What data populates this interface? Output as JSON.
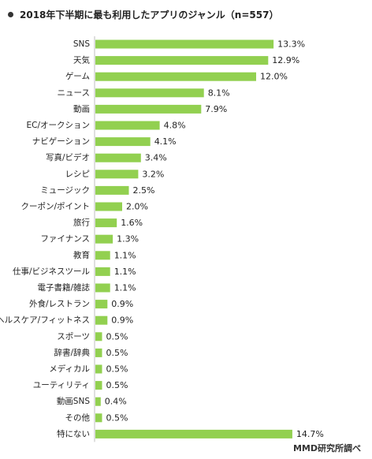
{
  "title": "2018年下半期に最も利用したアプリのジャンル（n=557）",
  "source": "MMD研究所調べ",
  "colors": {
    "bar": "#92d050",
    "axis": "#bfbfbf",
    "text": "#222222"
  },
  "chart_data": {
    "type": "bar",
    "orientation": "horizontal",
    "title": "2018年下半期に最も利用したアプリのジャンル（n=557）",
    "unit": "%",
    "categories": [
      "SNS",
      "天気",
      "ゲーム",
      "ニュース",
      "動画",
      "EC/オークション",
      "ナビゲーション",
      "写真/ビデオ",
      "レシピ",
      "ミュージック",
      "クーポン/ポイント",
      "旅行",
      "ファイナンス",
      "教育",
      "仕事/ビジネスツール",
      "電子書籍/雑誌",
      "外食/レストラン",
      "ヘルスケア/フィットネス",
      "スポーツ",
      "辞書/辞典",
      "メディカル",
      "ユーティリティ",
      "動画SNS",
      "その他",
      "特にない"
    ],
    "values": [
      13.3,
      12.9,
      12.0,
      8.1,
      7.9,
      4.8,
      4.1,
      3.4,
      3.2,
      2.5,
      2.0,
      1.6,
      1.3,
      1.1,
      1.1,
      1.1,
      0.9,
      0.9,
      0.5,
      0.5,
      0.5,
      0.5,
      0.4,
      0.5,
      14.7
    ],
    "value_labels": [
      "13.3%",
      "12.9%",
      "12.0%",
      "8.1%",
      "7.9%",
      "4.8%",
      "4.1%",
      "3.4%",
      "3.2%",
      "2.5%",
      "2.0%",
      "1.6%",
      "1.3%",
      "1.1%",
      "1.1%",
      "1.1%",
      "0.9%",
      "0.9%",
      "0.5%",
      "0.5%",
      "0.5%",
      "0.5%",
      "0.4%",
      "0.5%",
      "14.7%"
    ],
    "xlim": [
      0,
      17
    ],
    "grid": false,
    "legend": "none"
  }
}
